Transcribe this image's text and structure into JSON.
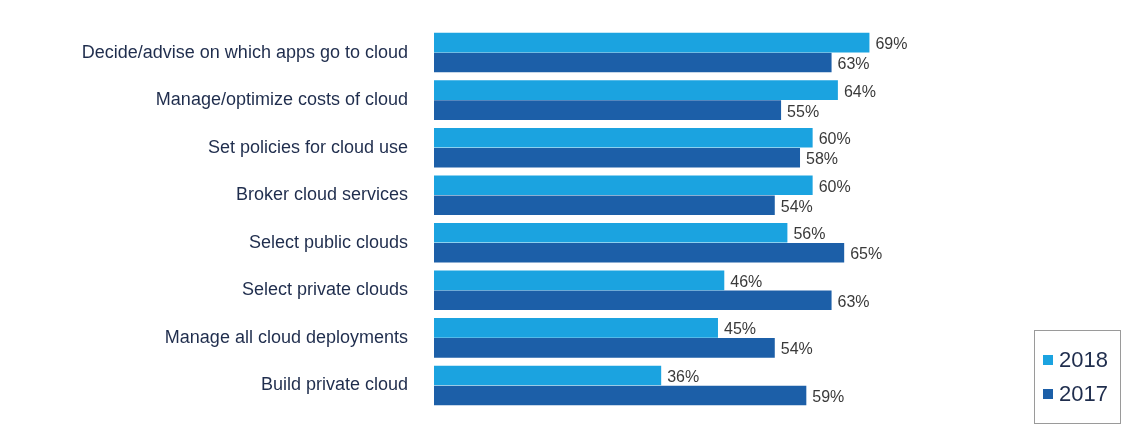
{
  "chart_data": {
    "type": "bar",
    "orientation": "horizontal",
    "legend": "bottom right",
    "categories": [
      "Decide/advise on which apps go to cloud",
      "Manage/optimize costs of cloud",
      "Set policies for cloud use",
      "Broker cloud services",
      "Select public clouds",
      "Select private clouds",
      "Manage all cloud deployments",
      "Build private cloud"
    ],
    "series": [
      {
        "name": "2018",
        "color": "#1ba3e0",
        "values": [
          69,
          64,
          60,
          60,
          56,
          46,
          45,
          36
        ],
        "value_labels": [
          "69%",
          "64%",
          "60%",
          "60%",
          "56%",
          "46%",
          "45%",
          "36%"
        ]
      },
      {
        "name": "2017",
        "color": "#1c5fa8",
        "values": [
          63,
          55,
          58,
          54,
          65,
          63,
          54,
          59
        ],
        "value_labels": [
          "63%",
          "55%",
          "58%",
          "54%",
          "65%",
          "63%",
          "54%",
          "59%"
        ]
      }
    ]
  }
}
